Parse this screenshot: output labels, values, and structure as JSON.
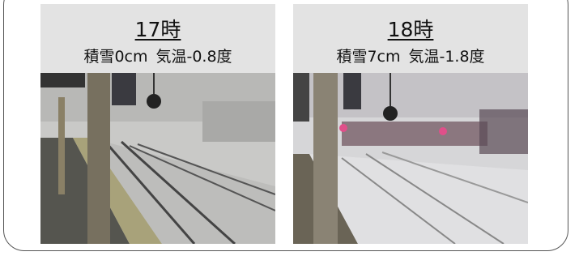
{
  "panels": [
    {
      "time": "17時",
      "snow": "積雪0cm",
      "temperature": "気温-0.8度"
    },
    {
      "time": "18時",
      "snow": "積雪7cm",
      "temperature": "気温-1.8度"
    }
  ]
}
